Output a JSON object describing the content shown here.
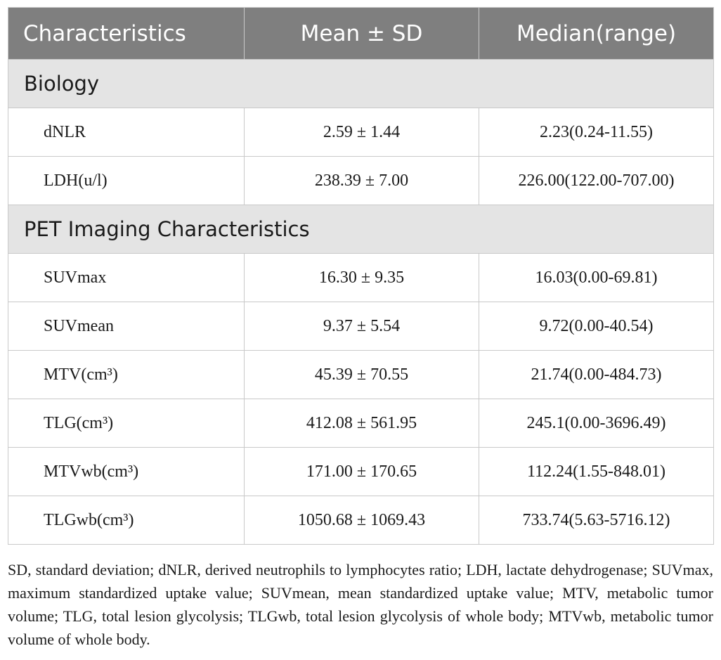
{
  "table": {
    "headers": [
      "Characteristics",
      "Mean ± SD",
      "Median(range)"
    ],
    "sections": [
      {
        "title": "Biology",
        "rows": [
          [
            "dNLR",
            "2.59 ± 1.44",
            "2.23(0.24-11.55)"
          ],
          [
            "LDH(u/l)",
            "238.39 ± 7.00",
            "226.00(122.00-707.00)"
          ]
        ]
      },
      {
        "title": "PET Imaging Characteristics",
        "rows": [
          [
            "SUVmax",
            "16.30 ± 9.35",
            "16.03(0.00-69.81)"
          ],
          [
            "SUVmean",
            "9.37 ± 5.54",
            "9.72(0.00-40.54)"
          ],
          [
            "MTV(cm³)",
            "45.39 ± 70.55",
            "21.74(0.00-484.73)"
          ],
          [
            "TLG(cm³)",
            "412.08 ± 561.95",
            "245.1(0.00-3696.49)"
          ],
          [
            "MTVwb(cm³)",
            "171.00 ± 170.65",
            "112.24(1.55-848.01)"
          ],
          [
            "TLGwb(cm³)",
            "1050.68 ± 1069.43",
            "733.74(5.63-5716.12)"
          ]
        ]
      }
    ]
  },
  "footnote": "SD, standard deviation; dNLR, derived neutrophils to lymphocytes ratio; LDH, lactate dehydrogenase; SUVmax, maximum standardized uptake value; SUVmean, mean standardized uptake value; MTV, metabolic tumor volume; TLG, total lesion glycolysis; TLGwb, total lesion glycolysis of whole body; MTVwb, metabolic tumor volume of whole body."
}
